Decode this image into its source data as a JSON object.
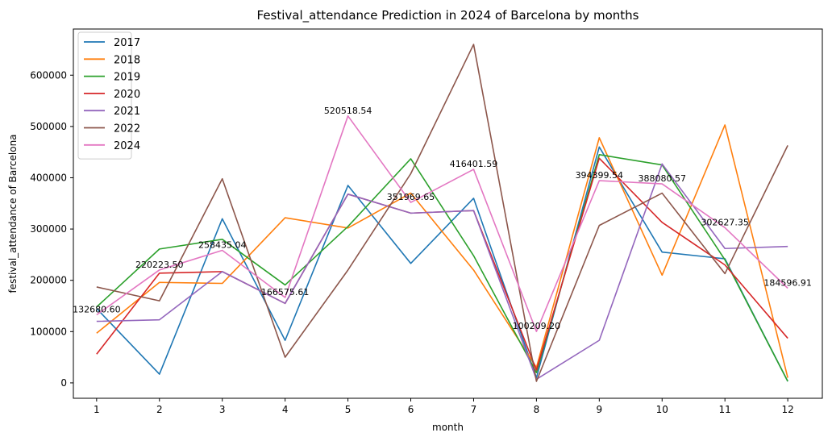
{
  "chart_data": {
    "type": "line",
    "title": "Festival_attendance Prediction in 2024 of Barcelona by months",
    "xlabel": "month",
    "ylabel": "festival_attendance of Barcelona",
    "x": [
      1,
      2,
      3,
      4,
      5,
      6,
      7,
      8,
      9,
      10,
      11,
      12
    ],
    "xlim": [
      0.63,
      12.55
    ],
    "ylim": [
      -30000,
      690000
    ],
    "yticks": [
      0,
      100000,
      200000,
      300000,
      400000,
      500000,
      600000
    ],
    "legend_position": "top-left",
    "grid": false,
    "series": [
      {
        "name": "2017",
        "color": "#1f77b4",
        "values": [
          145000,
          17000,
          320000,
          83000,
          385000,
          233000,
          360000,
          10000,
          460000,
          255000,
          242000,
          3000
        ]
      },
      {
        "name": "2018",
        "color": "#ff7f0e",
        "values": [
          97000,
          196000,
          194000,
          322000,
          302000,
          370000,
          220000,
          30000,
          478000,
          210000,
          503000,
          10000
        ]
      },
      {
        "name": "2019",
        "color": "#2ca02c",
        "values": [
          148000,
          261000,
          280000,
          191000,
          305000,
          437000,
          248000,
          20000,
          445000,
          425000,
          240000,
          3000
        ]
      },
      {
        "name": "2020",
        "color": "#d62728",
        "values": [
          56000,
          214000,
          217000,
          155000,
          368000,
          331000,
          336000,
          25000,
          438000,
          313000,
          230000,
          87000
        ]
      },
      {
        "name": "2021",
        "color": "#9467bd",
        "values": [
          120000,
          123000,
          217000,
          155000,
          368000,
          331000,
          336000,
          7000,
          83000,
          427000,
          262000,
          266000
        ]
      },
      {
        "name": "2022",
        "color": "#8c564b",
        "values": [
          187000,
          160000,
          398000,
          50000,
          220000,
          408000,
          660000,
          3000,
          307000,
          370000,
          213000,
          463000
        ]
      },
      {
        "name": "2024",
        "color": "#e377c2",
        "values": [
          132680.6,
          220223.5,
          258435.04,
          166575.61,
          520518.54,
          351969.65,
          416401.59,
          100209.2,
          394399.54,
          388080.57,
          302627.35,
          184596.91
        ]
      }
    ],
    "annotations": [
      "132680.60",
      "220223.50",
      "258435.04",
      "166575.61",
      "520518.54",
      "351969.65",
      "416401.59",
      "100209.20",
      "394399.54",
      "388080.57",
      "302627.35",
      "184596.91"
    ]
  }
}
